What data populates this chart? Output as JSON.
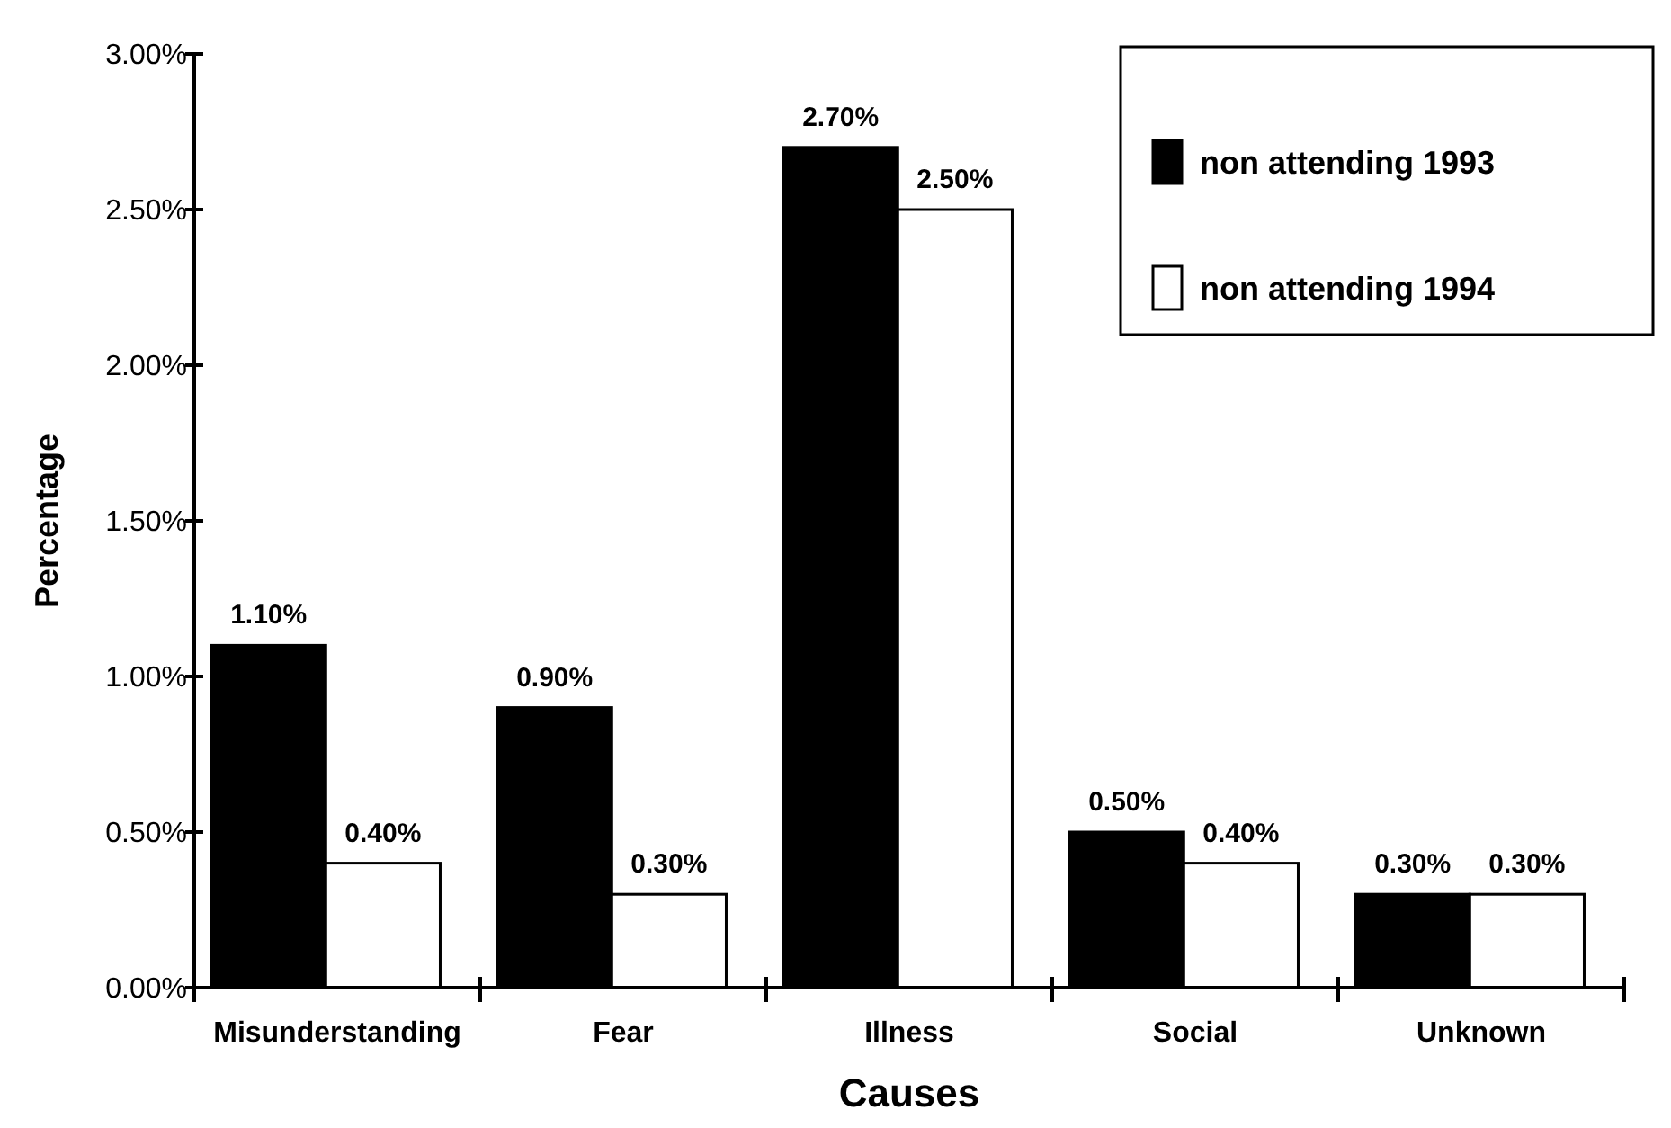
{
  "chart_data": {
    "type": "bar",
    "xlabel": "Causes",
    "ylabel": "Percentage",
    "categories": [
      "Misunderstanding",
      "Fear",
      "Illness",
      "Social",
      "Unknown"
    ],
    "series": [
      {
        "name": "non attending 1993",
        "color": "#000000",
        "values": [
          1.1,
          0.9,
          2.7,
          0.5,
          0.3
        ],
        "value_labels": [
          "1.10%",
          "0.90%",
          "2.70%",
          "0.50%",
          "0.30%"
        ]
      },
      {
        "name": "non attending 1994",
        "color": "#ffffff",
        "values": [
          0.4,
          0.3,
          2.5,
          0.4,
          0.3
        ],
        "value_labels": [
          "0.40%",
          "0.30%",
          "2.50%",
          "0.40%",
          "0.30%"
        ]
      }
    ],
    "ylim": [
      0,
      3
    ],
    "yticks": [
      {
        "value": 0,
        "label": "0.00%"
      },
      {
        "value": 0.5,
        "label": "0.50%"
      },
      {
        "value": 1,
        "label": "1.00%"
      },
      {
        "value": 1.5,
        "label": "1.50%"
      },
      {
        "value": 2,
        "label": "2.00%"
      },
      {
        "value": 2.5,
        "label": "2.50%"
      },
      {
        "value": 3,
        "label": "3.00%"
      }
    ],
    "grid": false,
    "legend": "top right"
  }
}
